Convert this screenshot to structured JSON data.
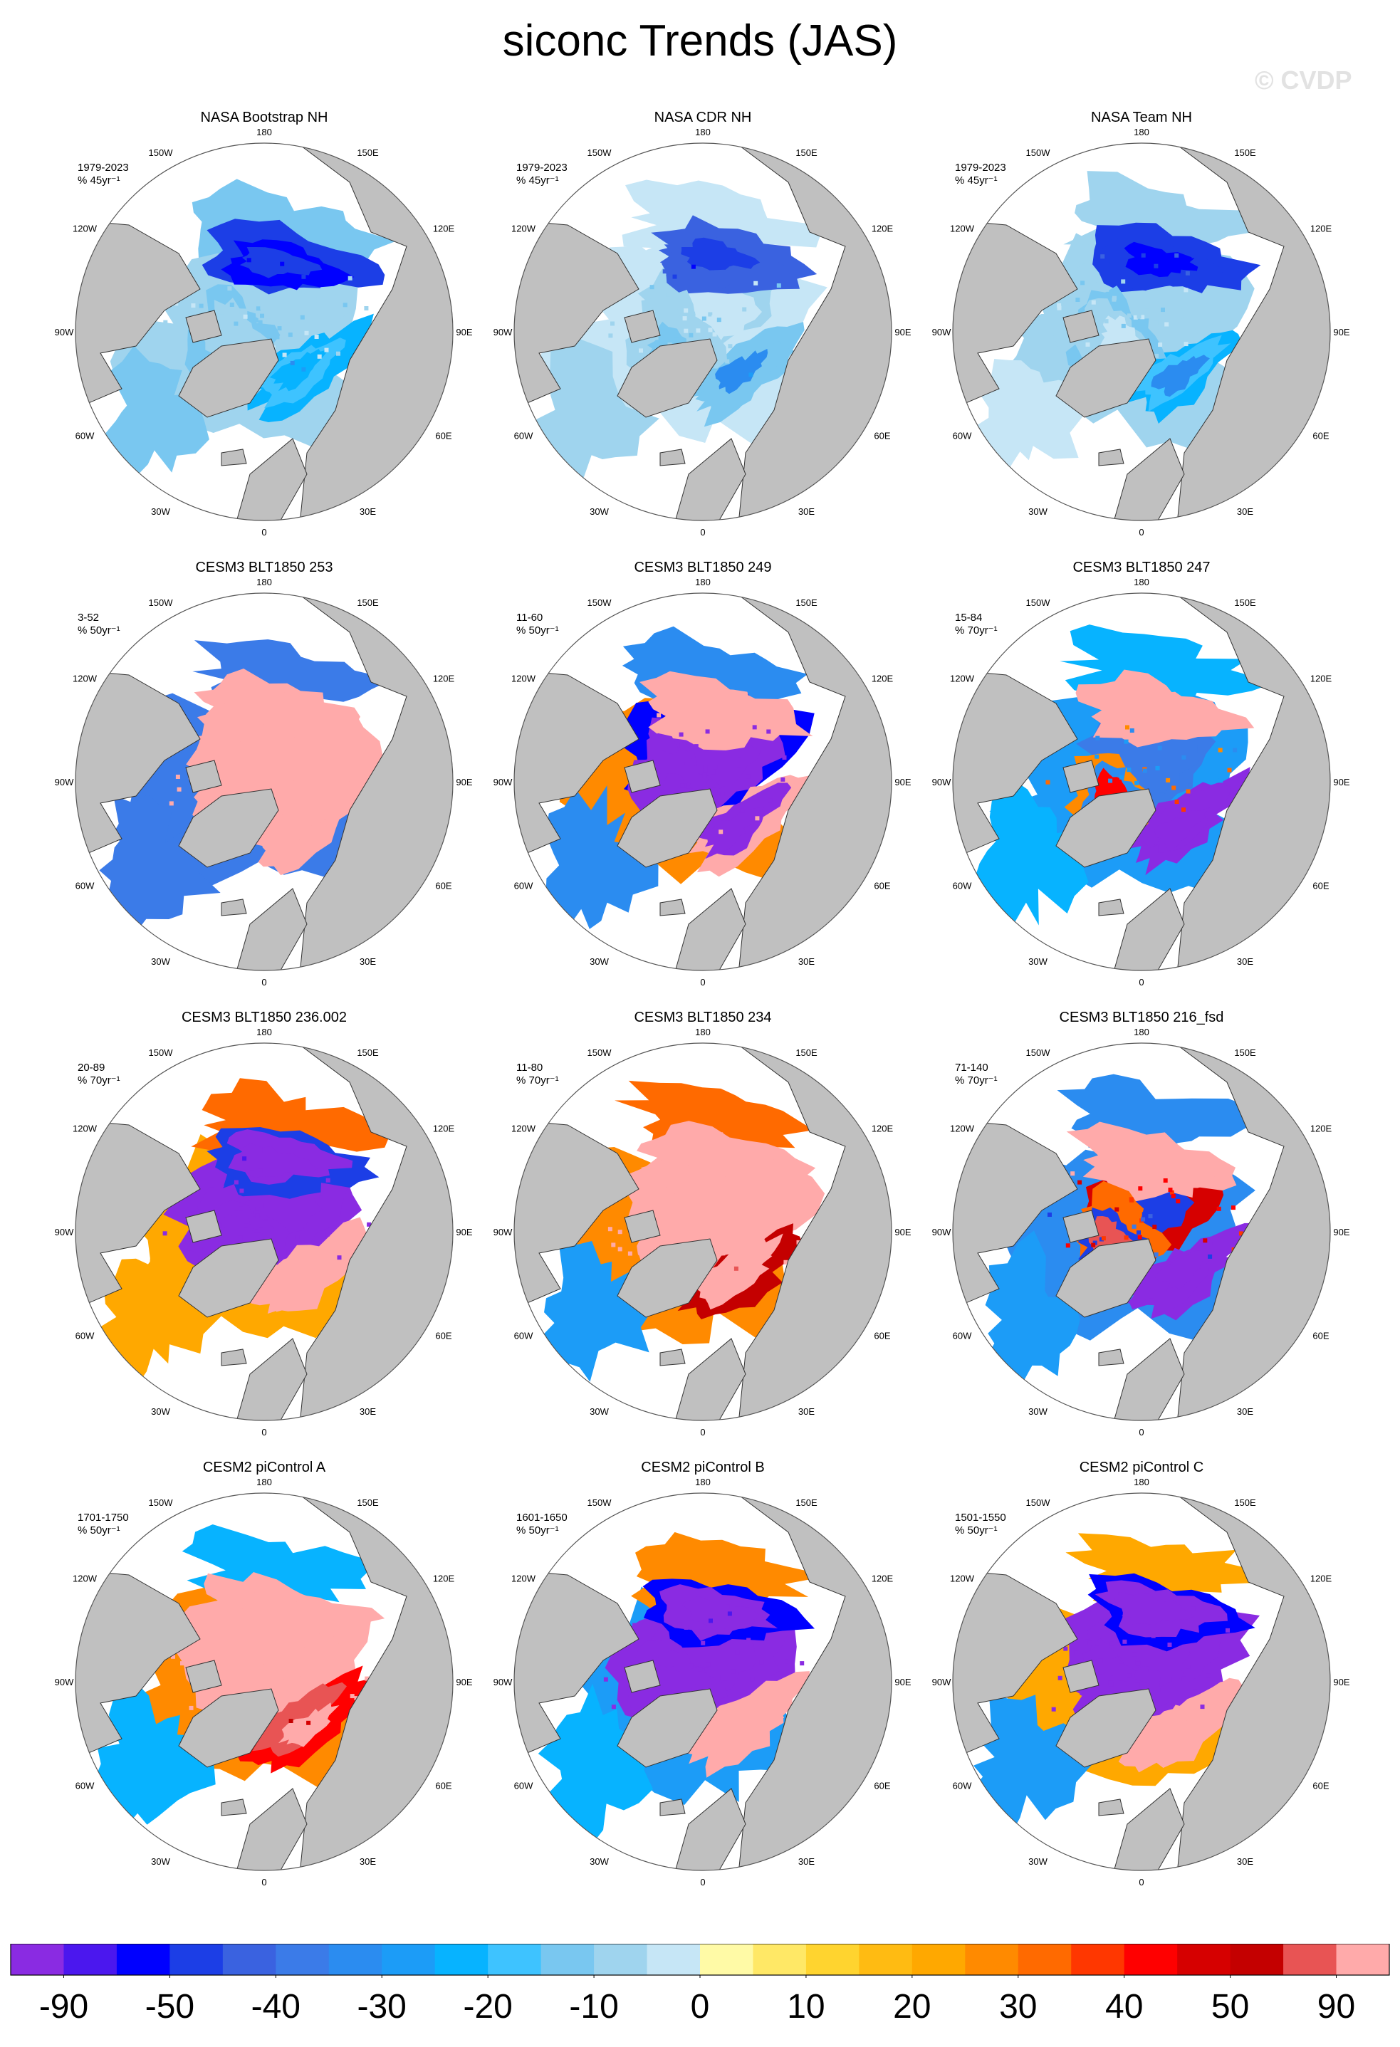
{
  "title": "siconc Trends (JAS)",
  "watermark": "© CVDP",
  "chart_data": [
    {
      "type": "map",
      "projection": "north-polar-stereographic",
      "title": "NASA Bootstrap NH",
      "period": "1979-2023",
      "units": "% 45yr⁻¹",
      "pattern": "strong-loss-siberian-beaufort",
      "intensity": 1.0
    },
    {
      "type": "map",
      "projection": "north-polar-stereographic",
      "title": "NASA CDR NH",
      "period": "1979-2023",
      "units": "% 45yr⁻¹",
      "pattern": "strong-loss-siberian-beaufort",
      "intensity": 1.0
    },
    {
      "type": "map",
      "projection": "north-polar-stereographic",
      "title": "NASA Team NH",
      "period": "1979-2023",
      "units": "% 45yr⁻¹",
      "pattern": "strong-loss-siberian-beaufort",
      "intensity": 0.9
    },
    {
      "type": "map",
      "projection": "north-polar-stereographic",
      "title": "CESM3 BLT1850 253",
      "period": "3-52",
      "units": "% 50yr⁻¹",
      "pattern": "basin-gain",
      "intensity": 0.9
    },
    {
      "type": "map",
      "projection": "north-polar-stereographic",
      "title": "CESM3 BLT1850 249",
      "period": "11-60",
      "units": "% 50yr⁻¹",
      "pattern": "mixed-west-loss-east-gain",
      "intensity": 0.7
    },
    {
      "type": "map",
      "projection": "north-polar-stereographic",
      "title": "CESM3 BLT1850 247",
      "period": "15-84",
      "units": "% 70yr⁻¹",
      "pattern": "mixed-pacific-gain-atlantic-loss",
      "intensity": 0.6
    },
    {
      "type": "map",
      "projection": "north-polar-stereographic",
      "title": "CESM3 BLT1850 236.002",
      "period": "20-89",
      "units": "% 70yr⁻¹",
      "pattern": "basin-loss-margin-gain",
      "intensity": 0.6
    },
    {
      "type": "map",
      "projection": "north-polar-stereographic",
      "title": "CESM3 BLT1850 234",
      "period": "11-80",
      "units": "% 70yr⁻¹",
      "pattern": "basin-gain",
      "intensity": 0.6
    },
    {
      "type": "map",
      "projection": "north-polar-stereographic",
      "title": "CESM3 BLT1850 216_fsd",
      "period": "71-140",
      "units": "% 70yr⁻¹",
      "pattern": "mixed-pacific-gain-atlantic-loss",
      "intensity": 0.8
    },
    {
      "type": "map",
      "projection": "north-polar-stereographic",
      "title": "CESM2 piControl A",
      "period": "1701-1750",
      "units": "% 50yr⁻¹",
      "pattern": "basin-gain",
      "intensity": 0.5
    },
    {
      "type": "map",
      "projection": "north-polar-stereographic",
      "title": "CESM2 piControl B",
      "period": "1601-1650",
      "units": "% 50yr⁻¹",
      "pattern": "basin-loss-margin-gain",
      "intensity": 0.6
    },
    {
      "type": "map",
      "projection": "north-polar-stereographic",
      "title": "CESM2 piControl C",
      "period": "1501-1550",
      "units": "% 50yr⁻¹",
      "pattern": "basin-loss-margin-gain",
      "intensity": 0.6
    }
  ],
  "longitude_labels": [
    "180",
    "150E",
    "120E",
    "90E",
    "60E",
    "30E",
    "0",
    "30W",
    "60W",
    "90W",
    "120W",
    "150W"
  ],
  "colorbar": {
    "colors": [
      "#8a2be2",
      "#4b17ee",
      "#0000ff",
      "#1c3ee6",
      "#3a62e0",
      "#3b7be8",
      "#2b8cf0",
      "#1c9cf7",
      "#07b3ff",
      "#3ec3ff",
      "#79c7f0",
      "#9fd4ee",
      "#c6e6f6",
      "#fffaa6",
      "#ffe866",
      "#ffd42f",
      "#ffbb12",
      "#ffa800",
      "#ff8a00",
      "#ff6a00",
      "#ff3700",
      "#ff0000",
      "#d60000",
      "#c40000",
      "#e85454",
      "#ffaaaa"
    ],
    "tick_labels": [
      "-90",
      "-50",
      "-40",
      "-30",
      "-20",
      "-10",
      "0",
      "10",
      "20",
      "30",
      "40",
      "50",
      "90"
    ],
    "land_color": "#c0c0c0"
  }
}
